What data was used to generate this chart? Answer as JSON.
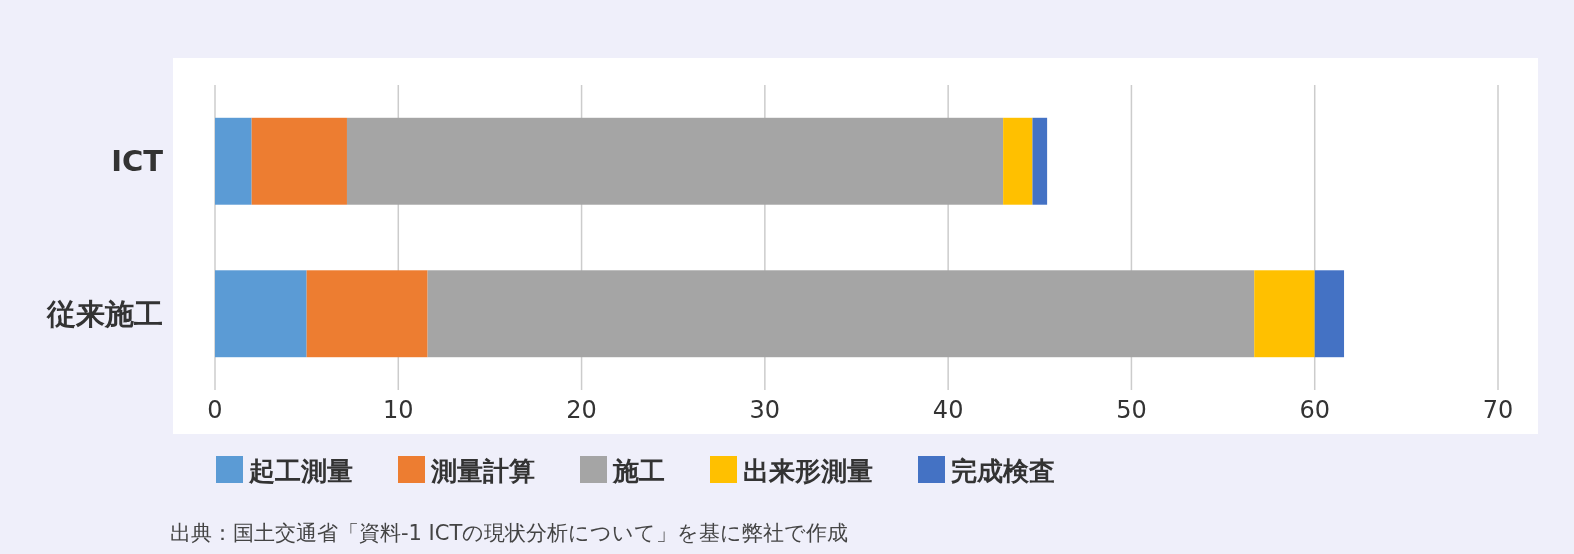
{
  "chart_data": {
    "type": "bar",
    "orientation": "horizontal",
    "stacked": true,
    "categories": [
      "ICT",
      "従来施工"
    ],
    "series": [
      {
        "name": "起工測量",
        "color": "#5b9bd5",
        "values": [
          2.0,
          5.0
        ]
      },
      {
        "name": "測量計算",
        "color": "#ed7d31",
        "values": [
          5.2,
          6.6
        ]
      },
      {
        "name": "施工",
        "color": "#a5a5a5",
        "values": [
          35.8,
          45.1
        ]
      },
      {
        "name": "出来形測量",
        "color": "#ffc000",
        "values": [
          1.6,
          3.3
        ]
      },
      {
        "name": "完成検査",
        "color": "#4472c4",
        "values": [
          0.8,
          1.6
        ]
      }
    ],
    "xlim": [
      0,
      70
    ],
    "xticks": [
      0,
      10,
      20,
      30,
      40,
      50,
      60,
      70
    ],
    "grid": "x",
    "legend": "bottom",
    "annotations": [
      "出典：国土交通省「資料-1 ICTの現状分析について」を基に弊社で作成"
    ]
  }
}
